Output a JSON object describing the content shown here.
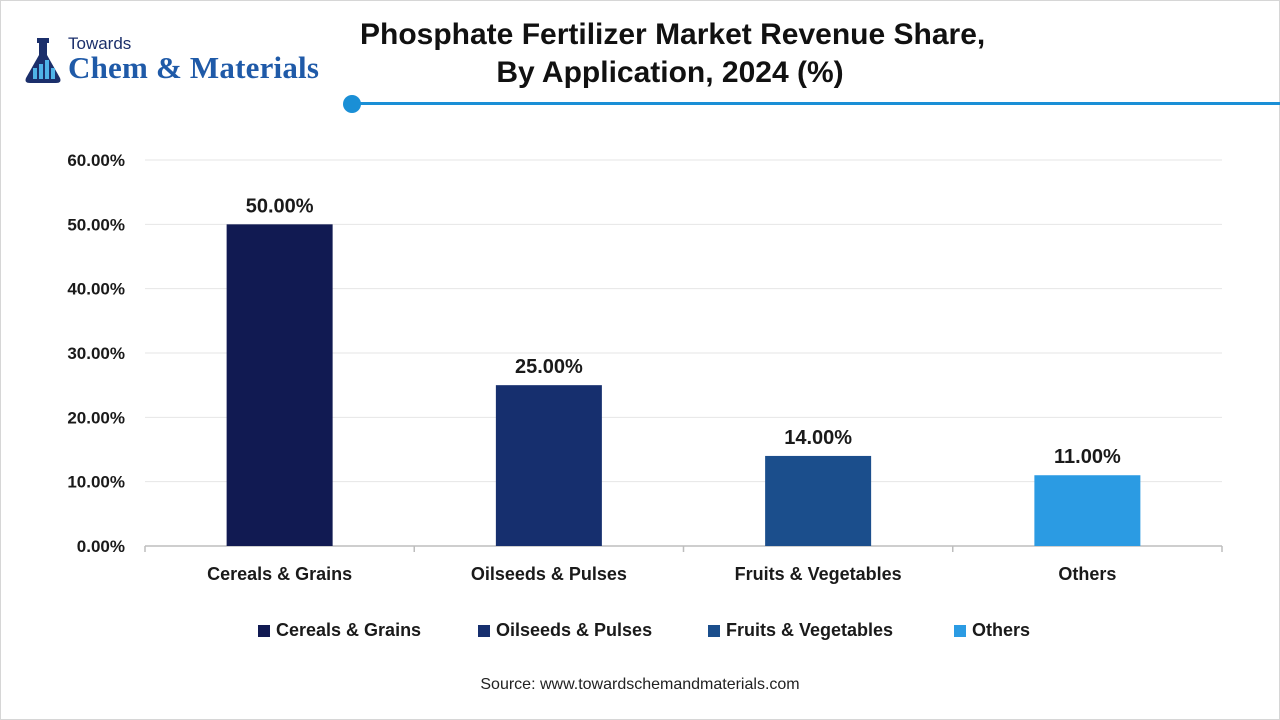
{
  "brand": {
    "top": "Towards",
    "main": "Chem & Materials"
  },
  "title": {
    "line1": "Phosphate Fertilizer Market Revenue Share,",
    "line2": "By Application, 2024 (%)"
  },
  "colors": {
    "accent": "#1a8fd6",
    "brand": "#1f5aa8"
  },
  "chart_data": {
    "type": "bar",
    "categories": [
      "Cereals & Grains",
      "Oilseeds & Pulses",
      "Fruits & Vegetables",
      "Others"
    ],
    "values": [
      50,
      25,
      14,
      11
    ],
    "data_labels": [
      "50.00%",
      "25.00%",
      "14.00%",
      "11.00%"
    ],
    "colors": [
      "#111a52",
      "#162f6e",
      "#1b4e8c",
      "#2b9be3"
    ],
    "ylim": [
      0,
      60
    ],
    "yticks": [
      0,
      10,
      20,
      30,
      40,
      50,
      60
    ],
    "ytick_labels": [
      "0.00%",
      "10.00%",
      "20.00%",
      "30.00%",
      "40.00%",
      "50.00%",
      "60.00%"
    ],
    "grid": true,
    "legend_position": "bottom"
  },
  "legend": [
    {
      "label": "Cereals & Grains",
      "color": "#111a52"
    },
    {
      "label": "Oilseeds & Pulses",
      "color": "#162f6e"
    },
    {
      "label": "Fruits & Vegetables",
      "color": "#1b4e8c"
    },
    {
      "label": "Others",
      "color": "#2b9be3"
    }
  ],
  "source": "Source: www.towardschemandmaterials.com"
}
